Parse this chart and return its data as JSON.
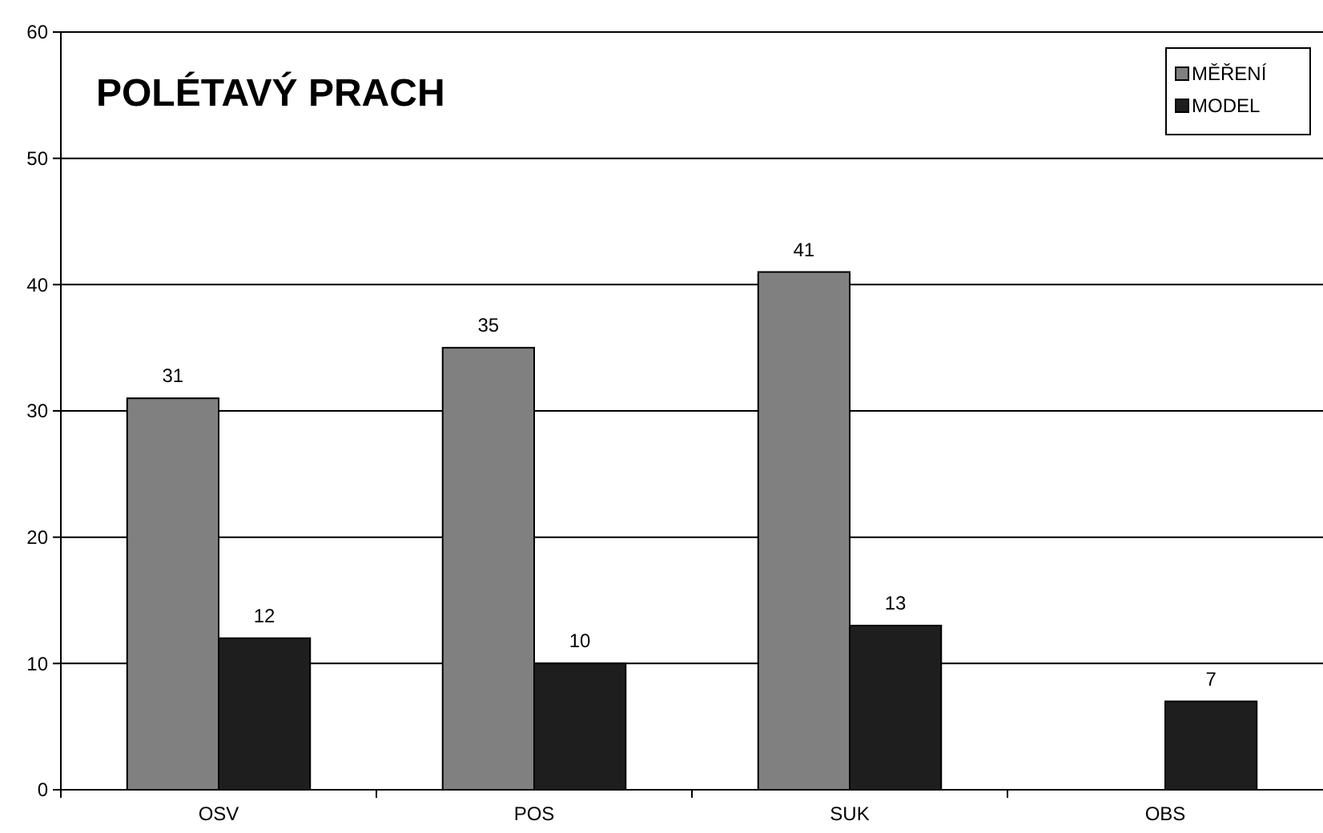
{
  "chart_data": {
    "type": "bar",
    "title": "POLÉTAVÝ PRACH",
    "categories": [
      "OSV",
      "POS",
      "SUK",
      "OBS"
    ],
    "series": [
      {
        "name": "MĚŘENÍ",
        "color": "#808080",
        "values": [
          31,
          35,
          41,
          null
        ]
      },
      {
        "name": "MODEL",
        "color": "#1e1e1e",
        "values": [
          12,
          10,
          13,
          7
        ]
      }
    ],
    "ylim": [
      0,
      60
    ],
    "yticks": [
      0,
      10,
      20,
      30,
      40,
      50,
      60
    ],
    "grid": "y",
    "legend": "top right",
    "data_labels": true
  }
}
